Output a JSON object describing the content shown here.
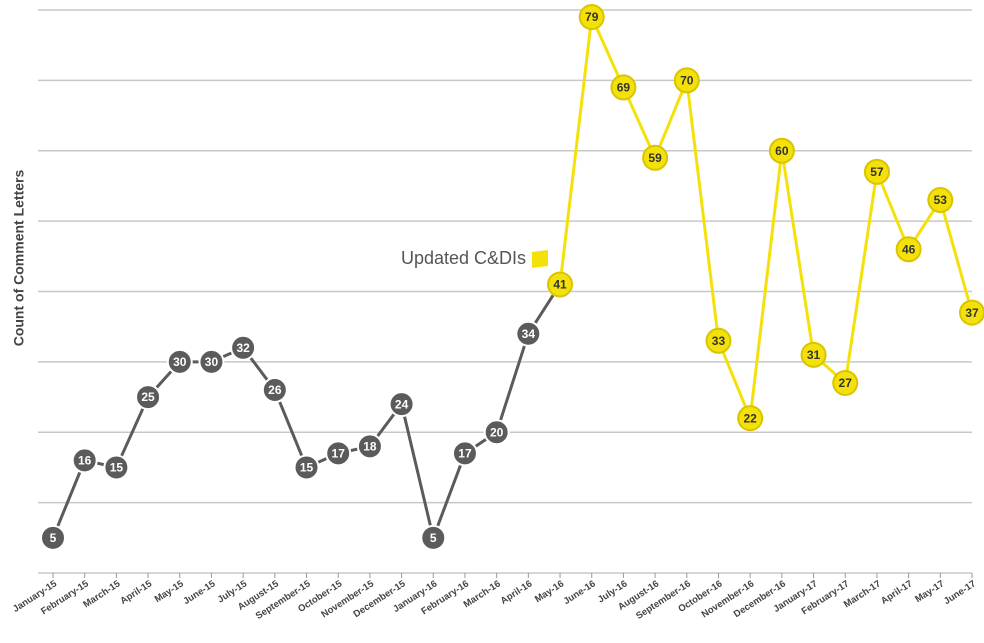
{
  "chart_data": {
    "type": "line",
    "y_label": "Count of Comment Letters",
    "annotation": "Updated C&DIs",
    "categories": [
      "January-15",
      "February-15",
      "March-15",
      "April-15",
      "May-15",
      "June-15",
      "July-15",
      "August-15",
      "September-15",
      "October-15",
      "November-15",
      "December-15",
      "January-16",
      "February-16",
      "March-16",
      "April-16",
      "May-16",
      "June-16",
      "July-16",
      "August-16",
      "September-16",
      "October-16",
      "November-16",
      "December-16",
      "January-17",
      "February-17",
      "March-17",
      "April-17",
      "May-17",
      "June-17"
    ],
    "series": [
      {
        "color": "#5b5b5b",
        "values": [
          5,
          16,
          15,
          25,
          30,
          30,
          32,
          26,
          15,
          17,
          18,
          24,
          5,
          17,
          20,
          34,
          41,
          null,
          null,
          null,
          null,
          null,
          null,
          null,
          null,
          null,
          null,
          null,
          null,
          null
        ]
      },
      {
        "color": "#f5e10a",
        "values": [
          null,
          null,
          null,
          null,
          null,
          null,
          null,
          null,
          null,
          null,
          null,
          null,
          null,
          null,
          null,
          null,
          41,
          79,
          69,
          59,
          70,
          33,
          22,
          60,
          31,
          27,
          57,
          46,
          53,
          37
        ]
      }
    ],
    "ylim": [
      0,
      80
    ],
    "yticks": [
      0,
      10,
      20,
      30,
      40,
      50,
      60,
      70,
      80
    ],
    "grid": true
  }
}
